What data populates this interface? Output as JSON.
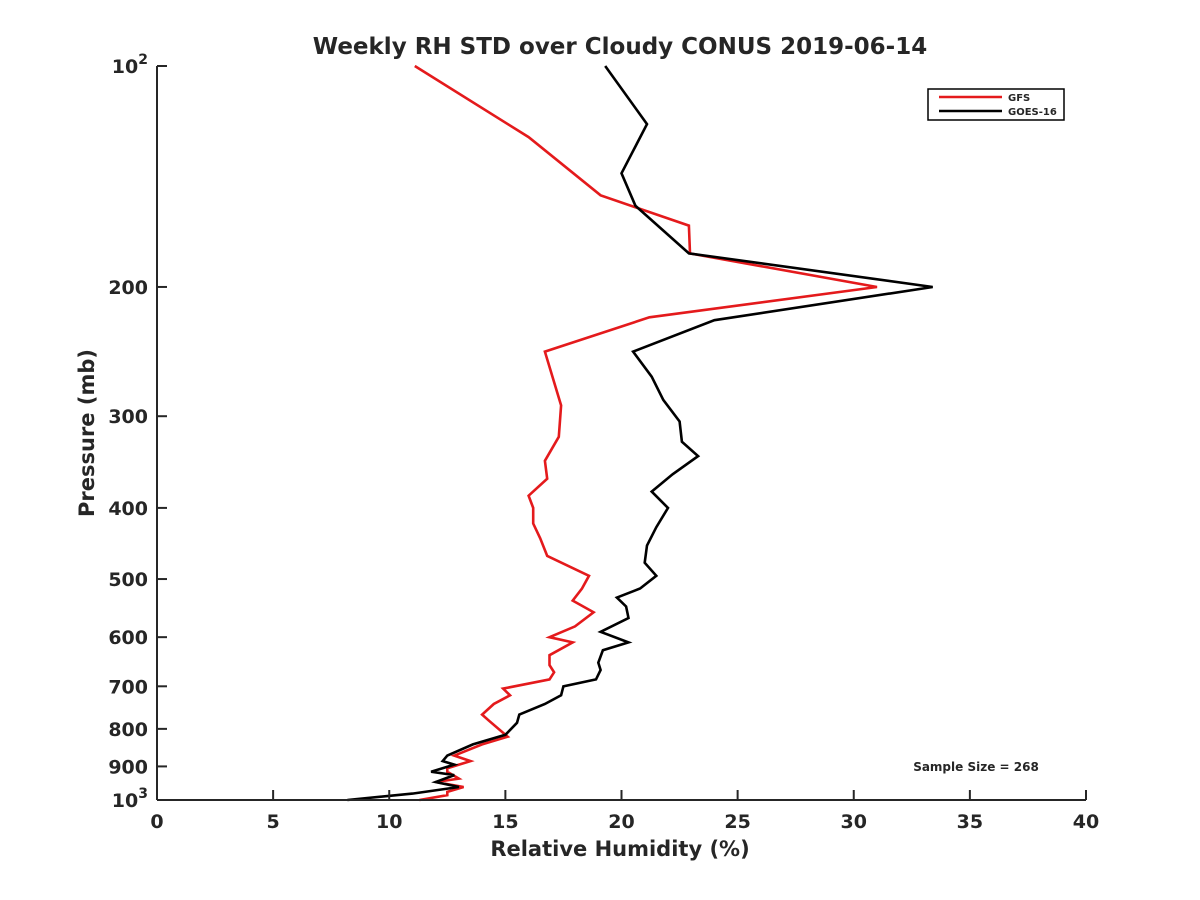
{
  "chart_data": {
    "type": "line",
    "title": "Weekly RH STD over Cloudy CONUS 2019-06-14",
    "xlabel": "Relative Humidity (%)",
    "ylabel": "Pressure (mb)",
    "xlim": [
      0,
      40
    ],
    "ylim": [
      100,
      1000
    ],
    "y_scale": "log",
    "y_reversed": true,
    "x_ticks": [
      "0",
      "5",
      "10",
      "15",
      "20",
      "25",
      "30",
      "35",
      "40"
    ],
    "y_ticks": [
      {
        "value": 100,
        "label": "10",
        "sup": "2"
      },
      {
        "value": 200,
        "label": "200",
        "sup": ""
      },
      {
        "value": 300,
        "label": "300",
        "sup": ""
      },
      {
        "value": 400,
        "label": "400",
        "sup": ""
      },
      {
        "value": 500,
        "label": "500",
        "sup": ""
      },
      {
        "value": 600,
        "label": "600",
        "sup": ""
      },
      {
        "value": 700,
        "label": "700",
        "sup": ""
      },
      {
        "value": 800,
        "label": "800",
        "sup": ""
      },
      {
        "value": 900,
        "label": "900",
        "sup": ""
      },
      {
        "value": 1000,
        "label": "10",
        "sup": "3"
      }
    ],
    "grid": false,
    "legend_position": "top-right",
    "annotation": "Sample Size = 268",
    "series": [
      {
        "name": "GFS",
        "color": "#e41a1c",
        "points": [
          [
            11.1,
            100
          ],
          [
            16.0,
            125
          ],
          [
            19.1,
            150
          ],
          [
            22.9,
            165
          ],
          [
            22.95,
            180
          ],
          [
            31.0,
            200
          ],
          [
            21.2,
            220
          ],
          [
            16.7,
            245
          ],
          [
            17.4,
            290
          ],
          [
            17.3,
            320
          ],
          [
            16.7,
            345
          ],
          [
            16.8,
            365
          ],
          [
            16.0,
            385
          ],
          [
            16.2,
            400
          ],
          [
            16.2,
            420
          ],
          [
            16.5,
            440
          ],
          [
            16.8,
            465
          ],
          [
            18.6,
            495
          ],
          [
            18.3,
            515
          ],
          [
            17.9,
            535
          ],
          [
            18.8,
            555
          ],
          [
            18.0,
            580
          ],
          [
            16.9,
            600
          ],
          [
            17.9,
            610
          ],
          [
            16.9,
            635
          ],
          [
            16.9,
            655
          ],
          [
            17.1,
            670
          ],
          [
            16.9,
            685
          ],
          [
            14.9,
            705
          ],
          [
            15.2,
            720
          ],
          [
            14.5,
            740
          ],
          [
            14.0,
            765
          ],
          [
            14.3,
            780
          ],
          [
            15.1,
            820
          ],
          [
            14.0,
            840
          ],
          [
            12.8,
            870
          ],
          [
            13.5,
            885
          ],
          [
            12.5,
            905
          ],
          [
            12.5,
            915
          ],
          [
            13.0,
            935
          ],
          [
            12.0,
            945
          ],
          [
            13.2,
            960
          ],
          [
            12.5,
            975
          ],
          [
            12.5,
            985
          ],
          [
            11.3,
            1000
          ]
        ]
      },
      {
        "name": "GOES-16",
        "color": "#000000",
        "points": [
          [
            19.3,
            100
          ],
          [
            21.1,
            120
          ],
          [
            20.0,
            140
          ],
          [
            20.6,
            155
          ],
          [
            22.9,
            180
          ],
          [
            33.4,
            200
          ],
          [
            24.0,
            222
          ],
          [
            20.5,
            245
          ],
          [
            21.3,
            265
          ],
          [
            21.8,
            285
          ],
          [
            22.5,
            305
          ],
          [
            22.6,
            325
          ],
          [
            23.3,
            340
          ],
          [
            22.2,
            360
          ],
          [
            21.3,
            380
          ],
          [
            22.0,
            400
          ],
          [
            21.5,
            425
          ],
          [
            21.1,
            450
          ],
          [
            21.0,
            475
          ],
          [
            21.5,
            495
          ],
          [
            20.8,
            515
          ],
          [
            19.8,
            530
          ],
          [
            20.2,
            545
          ],
          [
            20.3,
            565
          ],
          [
            19.1,
            590
          ],
          [
            20.3,
            610
          ],
          [
            19.2,
            625
          ],
          [
            19.0,
            650
          ],
          [
            19.1,
            665
          ],
          [
            18.9,
            685
          ],
          [
            17.5,
            700
          ],
          [
            17.4,
            720
          ],
          [
            16.7,
            740
          ],
          [
            15.6,
            765
          ],
          [
            15.5,
            785
          ],
          [
            15.0,
            815
          ],
          [
            13.6,
            840
          ],
          [
            12.5,
            870
          ],
          [
            12.3,
            885
          ],
          [
            12.8,
            895
          ],
          [
            11.8,
            915
          ],
          [
            12.8,
            925
          ],
          [
            12.0,
            945
          ],
          [
            13.0,
            960
          ],
          [
            11.0,
            980
          ],
          [
            8.2,
            1000
          ]
        ]
      }
    ]
  }
}
